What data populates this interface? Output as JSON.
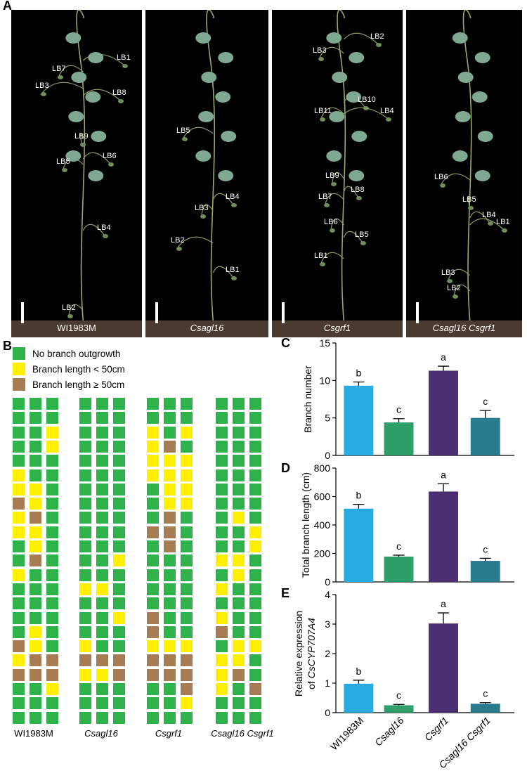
{
  "panel_letters": {
    "a": "A",
    "b": "B",
    "c": "C",
    "d": "D",
    "e": "E"
  },
  "photos": [
    {
      "caption": "WI1983M",
      "italic": false,
      "labels": [
        {
          "text": "LB1",
          "x": 150,
          "y": 62
        },
        {
          "text": "LB7",
          "x": 58,
          "y": 78
        },
        {
          "text": "LB3",
          "x": 34,
          "y": 102
        },
        {
          "text": "LB8",
          "x": 144,
          "y": 112
        },
        {
          "text": "LB9",
          "x": 90,
          "y": 174
        },
        {
          "text": "LB6",
          "x": 130,
          "y": 202
        },
        {
          "text": "LB5",
          "x": 64,
          "y": 210
        },
        {
          "text": "LB4",
          "x": 122,
          "y": 304
        },
        {
          "text": "LB2",
          "x": 72,
          "y": 418
        }
      ]
    },
    {
      "caption": "Csagl16",
      "italic": true,
      "labels": [
        {
          "text": "LB5",
          "x": 44,
          "y": 166
        },
        {
          "text": "LB4",
          "x": 114,
          "y": 260
        },
        {
          "text": "LB3",
          "x": 70,
          "y": 276
        },
        {
          "text": "LB2",
          "x": 36,
          "y": 322
        },
        {
          "text": "LB1",
          "x": 114,
          "y": 364
        }
      ]
    },
    {
      "caption": "Csgrf1",
      "italic": true,
      "labels": [
        {
          "text": "LB2",
          "x": 140,
          "y": 32
        },
        {
          "text": "LB3",
          "x": 58,
          "y": 52
        },
        {
          "text": "LB10",
          "x": 122,
          "y": 122
        },
        {
          "text": "LB11",
          "x": 60,
          "y": 138
        },
        {
          "text": "LB4",
          "x": 154,
          "y": 138
        },
        {
          "text": "LB9",
          "x": 76,
          "y": 230
        },
        {
          "text": "LB8",
          "x": 112,
          "y": 250
        },
        {
          "text": "LB7",
          "x": 66,
          "y": 260
        },
        {
          "text": "LB6",
          "x": 74,
          "y": 296
        },
        {
          "text": "LB5",
          "x": 118,
          "y": 314
        },
        {
          "text": "LB1",
          "x": 60,
          "y": 344
        }
      ]
    },
    {
      "caption": "Csagl16 Csgrf1",
      "italic": true,
      "labels": [
        {
          "text": "LB6",
          "x": 40,
          "y": 232
        },
        {
          "text": "LB5",
          "x": 80,
          "y": 264
        },
        {
          "text": "LB4",
          "x": 108,
          "y": 286
        },
        {
          "text": "LB1",
          "x": 128,
          "y": 296
        },
        {
          "text": "LB3",
          "x": 50,
          "y": 368
        },
        {
          "text": "LB2",
          "x": 58,
          "y": 390
        }
      ]
    }
  ],
  "legend": {
    "items": [
      {
        "label": "No branch outgrowth",
        "color": "#2db34a"
      },
      {
        "label": "Branch length < 50cm",
        "color": "#ffef00"
      },
      {
        "label": "Branch length ≥ 50cm",
        "color": "#a67c52"
      }
    ]
  },
  "branch_grid": {
    "code_key": {
      "G": "No branch outgrowth",
      "Y": "Branch length < 50cm",
      "B": "Branch length ≥ 50cm"
    },
    "genotypes": [
      {
        "label": "WI1983M",
        "italic": false,
        "rows": [
          "GGG",
          "GGG",
          "GGY",
          "GGY",
          "GGG",
          "YGG",
          "YYG",
          "BYG",
          "YBG",
          "YYG",
          "GYG",
          "GBG",
          "YGG",
          "GGG",
          "GGG",
          "GGG",
          "GYG",
          "BYG",
          "YBB",
          "BBB",
          "GGY",
          "GGG",
          "GGG"
        ]
      },
      {
        "label": "Csagl16",
        "italic": true,
        "rows": [
          "GGG",
          "GGG",
          "GGG",
          "GGG",
          "GGG",
          "GGG",
          "GGG",
          "GGG",
          "GGG",
          "GGG",
          "GGG",
          "GGY",
          "GGG",
          "YYG",
          "GGG",
          "GGY",
          "GGG",
          "YGG",
          "BBB",
          "YYB",
          "GGG",
          "GGG",
          "GGG"
        ]
      },
      {
        "label": "Csgrf1",
        "italic": true,
        "rows": [
          "GGG",
          "GGG",
          "YGY",
          "YBG",
          "YYY",
          "YYY",
          "GYY",
          "GYY",
          "GBG",
          "BBG",
          "GBG",
          "GGG",
          "GGG",
          "GGG",
          "GGG",
          "BGG",
          "BGG",
          "YYY",
          "BBB",
          "BBB",
          "GGB",
          "GGY",
          "GGG"
        ]
      },
      {
        "label": "Csagl16 Csgrf1",
        "italic": true,
        "rows": [
          "GGG",
          "GGG",
          "GGG",
          "GGG",
          "GGG",
          "GGG",
          "GGG",
          "GGG",
          "GYG",
          "GGY",
          "GGY",
          "YYG",
          "GYG",
          "YGG",
          "GGG",
          "YGG",
          "BGG",
          "GYY",
          "YYG",
          "YBG",
          "YGB",
          "GGG",
          "GGG"
        ]
      }
    ]
  },
  "chart_data": [
    {
      "type": "bar",
      "panel": "C",
      "categories": [
        "WI1983M",
        "Csagl16",
        "Csgrf1",
        "Csagl16 Csgrf1"
      ],
      "values": [
        9.3,
        4.4,
        11.3,
        5.0
      ],
      "errors": [
        0.5,
        0.5,
        0.6,
        1.0
      ],
      "letters": [
        "b",
        "c",
        "a",
        "c"
      ],
      "colors": [
        "#29abe2",
        "#2e9e6b",
        "#4b2e74",
        "#2b7b8f"
      ],
      "ylabel": "Branch number",
      "ylim": [
        0,
        15
      ],
      "yticks": [
        0,
        5,
        10,
        15
      ]
    },
    {
      "type": "bar",
      "panel": "D",
      "categories": [
        "WI1983M",
        "Csagl16",
        "Csgrf1",
        "Csagl16 Csgrf1"
      ],
      "values": [
        515,
        178,
        635,
        148
      ],
      "errors": [
        30,
        10,
        55,
        18
      ],
      "letters": [
        "b",
        "c",
        "a",
        "c"
      ],
      "colors": [
        "#29abe2",
        "#2e9e6b",
        "#4b2e74",
        "#2b7b8f"
      ],
      "ylabel": "Total branch length (cm)",
      "ylim": [
        0,
        800
      ],
      "yticks": [
        0,
        200,
        400,
        600,
        800
      ]
    },
    {
      "type": "bar",
      "panel": "E",
      "categories": [
        "WI1983M",
        "Csagl16",
        "Csgrf1",
        "Csagl16 Csgrf1"
      ],
      "values": [
        0.98,
        0.25,
        3.02,
        0.3
      ],
      "errors": [
        0.12,
        0.03,
        0.36,
        0.04
      ],
      "letters": [
        "b",
        "c",
        "a",
        "c"
      ],
      "colors": [
        "#29abe2",
        "#2e9e6b",
        "#4b2e74",
        "#2b7b8f"
      ],
      "ylabel_line1": "Relative expression",
      "ylabel_line2_prefix": "of ",
      "ylabel_line2_gene": "CsCYP707A4",
      "ylim": [
        0,
        4
      ],
      "yticks": [
        0,
        1,
        2,
        3,
        4
      ],
      "xtick_labels": [
        "WI1983M",
        "Csagl16",
        "Csgrf1",
        "Csagl16 Csgrf1"
      ]
    }
  ]
}
